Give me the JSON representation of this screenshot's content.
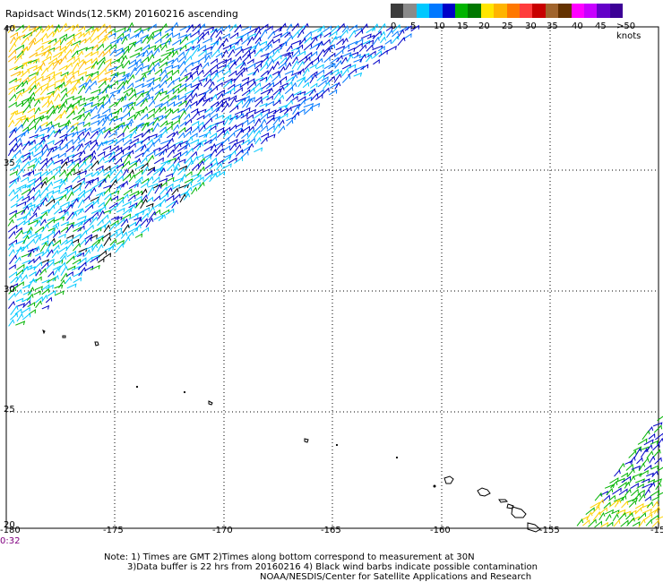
{
  "title": "Rapidsact Winds(12.5KM) 20160216 ascending",
  "legend": {
    "swatches": [
      {
        "color": "#3c3c3c"
      },
      {
        "color": "#8a8a8a"
      },
      {
        "color": "#00c8ff"
      },
      {
        "color": "#0078ff"
      },
      {
        "color": "#0000c8"
      },
      {
        "color": "#00b400"
      },
      {
        "color": "#007800"
      },
      {
        "color": "#ffe600"
      },
      {
        "color": "#ffb400"
      },
      {
        "color": "#ff7800"
      },
      {
        "color": "#ff3c3c"
      },
      {
        "color": "#c80000"
      },
      {
        "color": "#a0642d"
      },
      {
        "color": "#643200"
      },
      {
        "color": "#ff00ff"
      },
      {
        "color": "#c800ff"
      },
      {
        "color": "#6400c8"
      },
      {
        "color": "#3c0096"
      }
    ],
    "labels": [
      "0",
      "5",
      "10",
      "15",
      "20",
      "25",
      "30",
      "35",
      "40",
      "45",
      ">50 knots"
    ]
  },
  "axes": {
    "lat_labels": [
      "40",
      "35",
      "30",
      "25",
      "20"
    ],
    "lon_labels": [
      "-180",
      "-175",
      "-170",
      "-165",
      "-160",
      "-155",
      "-15"
    ]
  },
  "time_label": "0:32",
  "notes": [
    "Note: 1) Times are GMT 2)Times along bottom correspond to measurement at 30N",
    "3)Data buffer is 22 hrs from 20160216 4) Black wind barbs indicate possible contamination",
    "NOAA/NESDIS/Center for Satellite Applications and Research"
  ]
}
